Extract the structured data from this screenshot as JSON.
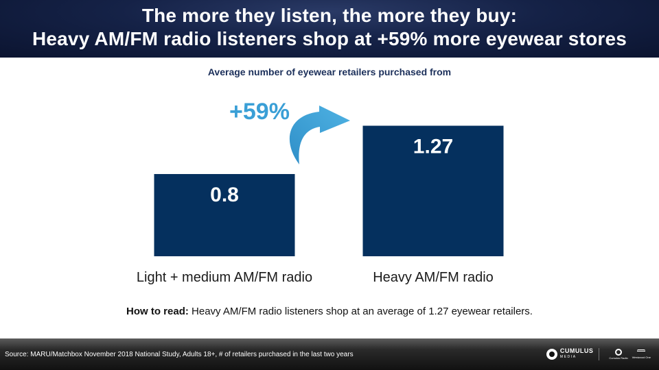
{
  "header": {
    "line1": "The more they listen, the more they buy:",
    "line2": "Heavy AM/FM radio listeners shop at +59% more eyewear stores"
  },
  "chart_data": {
    "type": "bar",
    "title": "Average number of eyewear retailers purchased from",
    "categories": [
      "Light + medium AM/FM radio",
      "Heavy AM/FM radio"
    ],
    "values": [
      0.8,
      1.27
    ],
    "value_labels": [
      "0.8",
      "1.27"
    ],
    "ylim": [
      0,
      1.6
    ],
    "grid": false,
    "legend": "none",
    "annotation": "+59%",
    "bar_color": "#05305e",
    "annotation_color": "#3a9fd6"
  },
  "how_to": {
    "label": "How to read:",
    "text": " Heavy AM/FM radio listeners shop at an average of 1.27 eyewear retailers."
  },
  "footer": {
    "source": "Source: MARU/Matchbox November 2018 National Study, Adults 18+, # of retailers purchased in the last two years",
    "logo_main": "CUMULUS",
    "logo_main_sub": "MEDIA",
    "logo_2": "Cumulus Radio",
    "logo_3": "Westwood One"
  }
}
